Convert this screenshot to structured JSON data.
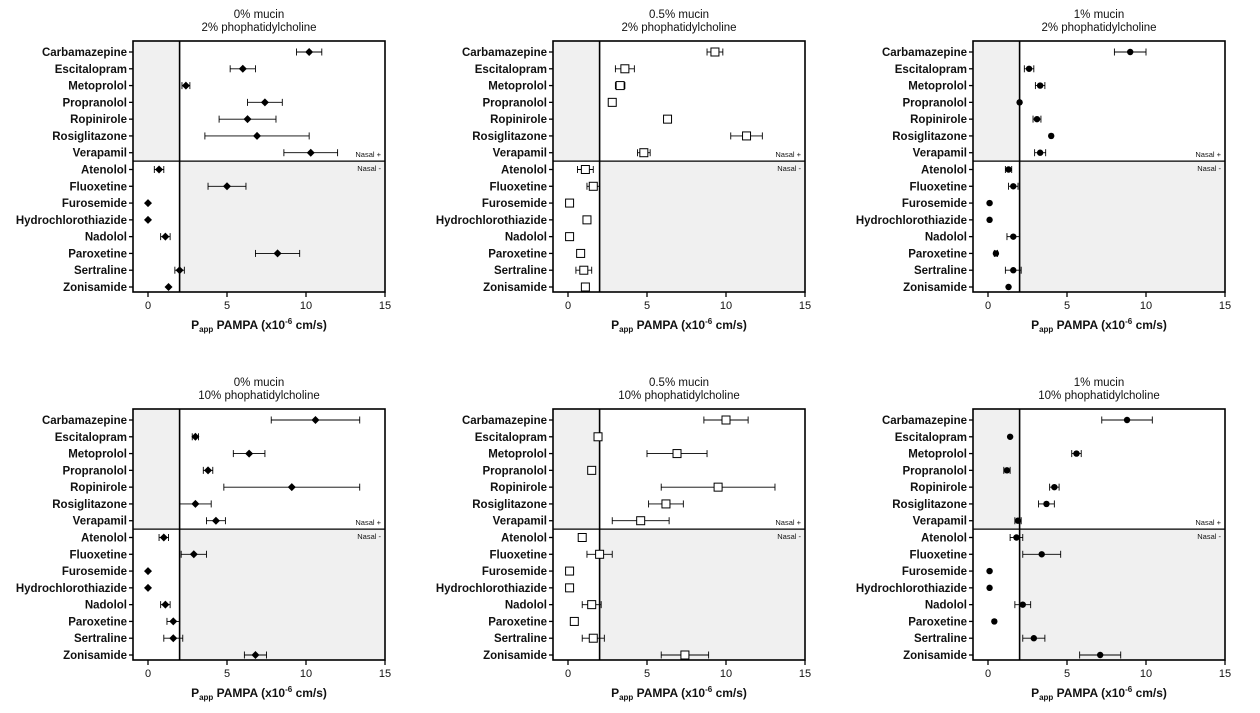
{
  "chart_data": {
    "type": "scatter",
    "shared": {
      "drugs": [
        "Carbamazepine",
        "Escitalopram",
        "Metoprolol",
        "Propranolol",
        "Ropinirole",
        "Rosiglitazone",
        "Verapamil",
        "Atenolol",
        "Fluoxetine",
        "Furosemide",
        "Hydrochlorothiazide",
        "Nadolol",
        "Paroxetine",
        "Sertraline",
        "Zonisamide"
      ],
      "xlabel_main": "P",
      "xlabel_sub": "app",
      "xlabel_rest": " PAMPA (x10",
      "xlabel_exp": "-6",
      "xlabel_unit": " cm/s)",
      "xlim": [
        0,
        15
      ],
      "xticks": [
        "0",
        "5",
        "10",
        "15"
      ],
      "threshold": 2,
      "nasal_pos_label": "Nasal +",
      "nasal_neg_label": "Nasal -",
      "shade_color": "#f0f0f0",
      "marker_color": "#000000"
    },
    "panels": [
      {
        "title1": "0% mucin",
        "title2": "2% phophatidylcholine",
        "marker": "diamond",
        "values": [
          10.2,
          6.0,
          2.4,
          7.4,
          6.3,
          6.9,
          10.3,
          0.7,
          5.0,
          0.0,
          0.0,
          1.1,
          8.2,
          2.0,
          1.3
        ],
        "errors": [
          0.8,
          0.8,
          0.25,
          1.1,
          1.8,
          3.3,
          1.7,
          0.3,
          1.2,
          0.0,
          0.0,
          0.3,
          1.4,
          0.3,
          0.0
        ]
      },
      {
        "title1": "0.5% mucin",
        "title2": "2% phophatidylcholine",
        "marker": "square",
        "values": [
          9.3,
          3.6,
          3.3,
          2.8,
          6.3,
          11.3,
          4.8,
          1.1,
          1.6,
          0.1,
          1.2,
          0.1,
          0.8,
          1.0,
          1.1
        ],
        "errors": [
          0.5,
          0.6,
          0.3,
          0.0,
          0.0,
          1.0,
          0.4,
          0.5,
          0.4,
          0.0,
          0.0,
          0.0,
          0.0,
          0.5,
          0.0
        ]
      },
      {
        "title1": "1% mucin",
        "title2": "2% phophatidylcholine",
        "marker": "circle",
        "values": [
          9.0,
          2.6,
          3.3,
          2.0,
          3.1,
          4.0,
          3.3,
          1.3,
          1.6,
          0.1,
          0.1,
          1.6,
          0.5,
          1.6,
          1.3
        ],
        "errors": [
          1.0,
          0.3,
          0.3,
          0.0,
          0.25,
          0.0,
          0.35,
          0.2,
          0.3,
          0.0,
          0.0,
          0.4,
          0.1,
          0.5,
          0.0
        ]
      },
      {
        "title1": "0% mucin",
        "title2": "10% phophatidylcholine",
        "marker": "diamond",
        "values": [
          10.6,
          3.0,
          6.4,
          3.8,
          9.1,
          3.0,
          4.3,
          1.0,
          2.9,
          0.0,
          0.0,
          1.1,
          1.6,
          1.6,
          6.8
        ],
        "errors": [
          2.8,
          0.2,
          1.0,
          0.3,
          4.3,
          1.0,
          0.6,
          0.3,
          0.8,
          0.0,
          0.0,
          0.3,
          0.4,
          0.6,
          0.7
        ]
      },
      {
        "title1": "0.5% mucin",
        "title2": "10% phophatidylcholine",
        "marker": "square",
        "values": [
          10.0,
          1.9,
          6.9,
          1.5,
          9.5,
          6.2,
          4.6,
          0.9,
          2.0,
          0.1,
          0.1,
          1.5,
          0.4,
          1.6,
          7.4
        ],
        "errors": [
          1.4,
          0.0,
          1.9,
          0.0,
          3.6,
          1.1,
          1.8,
          0.0,
          0.8,
          0.0,
          0.0,
          0.6,
          0.0,
          0.7,
          1.5
        ]
      },
      {
        "title1": "1% mucin",
        "title2": "10% phophatidylcholine",
        "marker": "circle",
        "values": [
          8.8,
          1.4,
          5.6,
          1.2,
          4.2,
          3.7,
          1.9,
          1.8,
          3.4,
          0.1,
          0.1,
          2.2,
          0.4,
          2.9,
          7.1
        ],
        "errors": [
          1.6,
          0.0,
          0.3,
          0.2,
          0.3,
          0.5,
          0.2,
          0.4,
          1.2,
          0.0,
          0.0,
          0.5,
          0.0,
          0.7,
          1.3
        ]
      }
    ]
  }
}
